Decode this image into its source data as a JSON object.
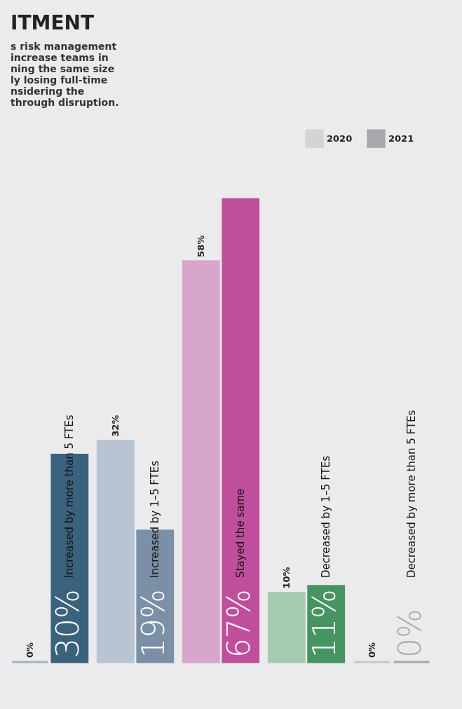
{
  "chart_data": {
    "type": "bar",
    "title": "ITMENT",
    "subtitle": [
      "s risk management",
      "increase teams in",
      "ning the same size",
      "ly losing full-time",
      "nsidering the",
      "through disruption."
    ],
    "categories": [
      "Increased by more than 5 FTEs",
      "Increased by 1–5 FTEs",
      "Stayed the same",
      "Decreased by 1–5 FTEs",
      "Decreased by more than 5 FTEs"
    ],
    "series": [
      {
        "name": "2020",
        "color": "#d3d4d6",
        "colors": [
          "#9fb3c8",
          "#b9c4d2",
          "#d8a5cb",
          "#a7cbb0",
          "#c8c8ca"
        ],
        "values": [
          0,
          32,
          58,
          10,
          0
        ],
        "value_labels": [
          "0%",
          "32%",
          "58%",
          "10%",
          "0%"
        ]
      },
      {
        "name": "2021",
        "color": "#a7a8ab",
        "colors": [
          "#3a627d",
          "#7b8fa6",
          "#bf4f9c",
          "#479463",
          "#a7a8ab"
        ],
        "values": [
          30,
          19,
          67,
          11,
          0
        ],
        "value_labels": [
          "30%",
          "19%",
          "67%",
          "11%",
          "0%"
        ]
      }
    ],
    "legend": "top right",
    "tick_labels": false
  }
}
